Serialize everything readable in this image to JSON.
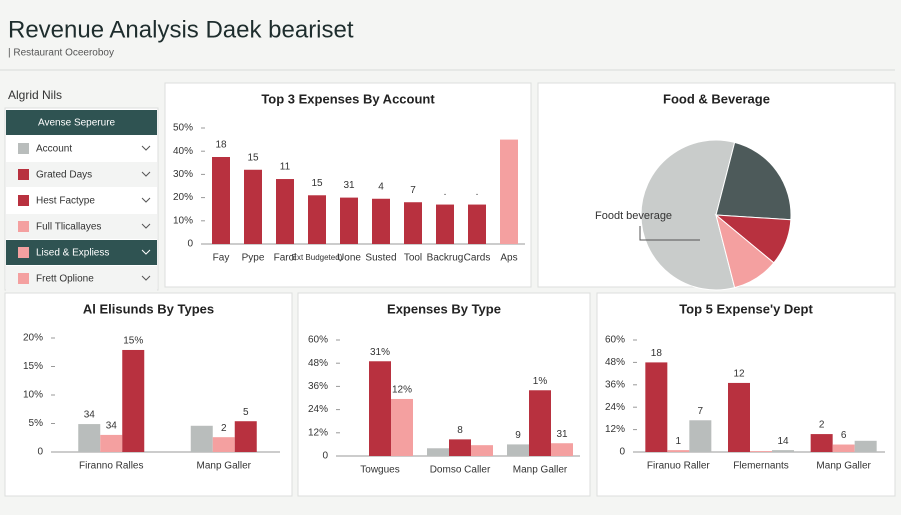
{
  "header": {
    "title": "Revenue Analysis Daek beariset",
    "subtitle": "| Restaurant Oceeroboy"
  },
  "sidebar": {
    "title": "Algrid Nils",
    "items": [
      {
        "label": "Avense Seperure",
        "style": "header"
      },
      {
        "label": "Account",
        "color": "#b9bdbc",
        "style": "item"
      },
      {
        "label": "Grated Days",
        "color": "#b8313f",
        "style": "item"
      },
      {
        "label": "Hest Factype",
        "color": "#b8313f",
        "style": "item"
      },
      {
        "label": "Full Tlicallayes",
        "color": "#f4a0a0",
        "style": "item"
      },
      {
        "label": "Lised & Expliess",
        "color": "#f4a0a0",
        "style": "header"
      },
      {
        "label": "Frett Oplione",
        "color": "#f4a0a0",
        "style": "item"
      }
    ]
  },
  "chart_data": [
    {
      "type": "bar",
      "title": "Top 3 Expenses By Account",
      "categories": [
        "Fay",
        "Pype",
        "Farol",
        "Ext Budgeted)",
        "Uone",
        "Susted",
        "Tool",
        "Backrug",
        "Cards",
        "Aps"
      ],
      "values": [
        37.5,
        32,
        28,
        21,
        20,
        19.5,
        18,
        17,
        17,
        45
      ],
      "colors": [
        "#b8313f",
        "#b8313f",
        "#b8313f",
        "#b8313f",
        "#b8313f",
        "#b8313f",
        "#b8313f",
        "#b8313f",
        "#b8313f",
        "#f4a0a0"
      ],
      "bar_labels": [
        "18",
        "15",
        "11",
        "15",
        "31",
        "4",
        "7",
        ".",
        ".",
        null
      ],
      "ylim": [
        0,
        50
      ],
      "yticks": [
        0,
        {
          "value": 10,
          "label": "10%"
        },
        {
          "value": 20,
          "label": "20%"
        },
        {
          "value": 30,
          "label": "30%"
        },
        {
          "value": 40,
          "label": "40%"
        },
        {
          "value": 50,
          "label": "50%"
        }
      ]
    },
    {
      "type": "pie",
      "title": "Food & Beverage",
      "values": [
        58,
        22,
        10,
        10
      ],
      "colors": [
        "#c9cccb",
        "#4d5a5a",
        "#b8313f",
        "#f4a0a0"
      ],
      "annotation": "Foodt beverage"
    },
    {
      "type": "grouped_bar",
      "title": "Al Elisunds By Types",
      "categories": [
        "Firanno Ralles",
        "Manp Galler"
      ],
      "series": [
        {
          "color": "#b9bdbc",
          "values": [
            4.9,
            4.6
          ],
          "labels": [
            "34",
            null
          ]
        },
        {
          "color": "#f4a0a0",
          "values": [
            3,
            2.6
          ],
          "labels": [
            "34",
            "2"
          ]
        },
        {
          "color": "#b8313f",
          "values": [
            17.9,
            5.4
          ],
          "labels": [
            "15%",
            "5"
          ]
        }
      ],
      "ylim": [
        0,
        20
      ],
      "yticks": [
        0,
        {
          "value": 5,
          "label": "5%"
        },
        {
          "value": 10,
          "label": "10%"
        },
        {
          "value": 15,
          "label": "15%"
        },
        {
          "value": 20,
          "label": "20%"
        }
      ]
    },
    {
      "type": "grouped_bar",
      "title": "Expenses By Type",
      "categories": [
        "Towgues",
        "Domso Caller",
        "Manp Galler"
      ],
      "series": [
        {
          "color": "#b9bdbc",
          "values": [
            null,
            4,
            6
          ],
          "labels": [
            null,
            null,
            "9"
          ]
        },
        {
          "color": "#b8313f",
          "values": [
            49,
            8.6,
            34
          ],
          "labels": [
            "31%",
            "8",
            "1%"
          ]
        },
        {
          "color": "#f4a0a0",
          "values": [
            29.5,
            5.6,
            6.6
          ],
          "labels": [
            "12%",
            null,
            "31"
          ]
        }
      ],
      "ylim": [
        0,
        60
      ],
      "yticks": [
        0,
        {
          "value": 12,
          "label": "12%"
        },
        {
          "value": 24,
          "label": "24%"
        },
        {
          "value": 36,
          "label": "36%"
        },
        {
          "value": 48,
          "label": "48%"
        },
        {
          "value": 60,
          "label": "60%"
        }
      ]
    },
    {
      "type": "grouped_bar",
      "title": "Top 5 Expense'y Dept",
      "categories": [
        "Firanuo Raller",
        "Flemernants",
        "Manp Galler"
      ],
      "series": [
        {
          "color": "#b8313f",
          "values": [
            48,
            37,
            9.6
          ],
          "labels": [
            "18",
            "12",
            "2"
          ]
        },
        {
          "color": "#f4a0a0",
          "values": [
            1,
            0.5,
            4
          ],
          "labels": [
            "1",
            null,
            "6"
          ]
        },
        {
          "color": "#b9bdbc",
          "values": [
            17,
            1,
            6
          ],
          "labels": [
            "7",
            "14",
            null
          ]
        }
      ],
      "ylim": [
        0,
        60
      ],
      "yticks": [
        0,
        {
          "value": 12,
          "label": "12%"
        },
        {
          "value": 24,
          "label": "24%"
        },
        {
          "value": 36,
          "label": "36%"
        },
        {
          "value": 48,
          "label": "48%"
        },
        {
          "value": 60,
          "label": "60%"
        }
      ]
    }
  ]
}
